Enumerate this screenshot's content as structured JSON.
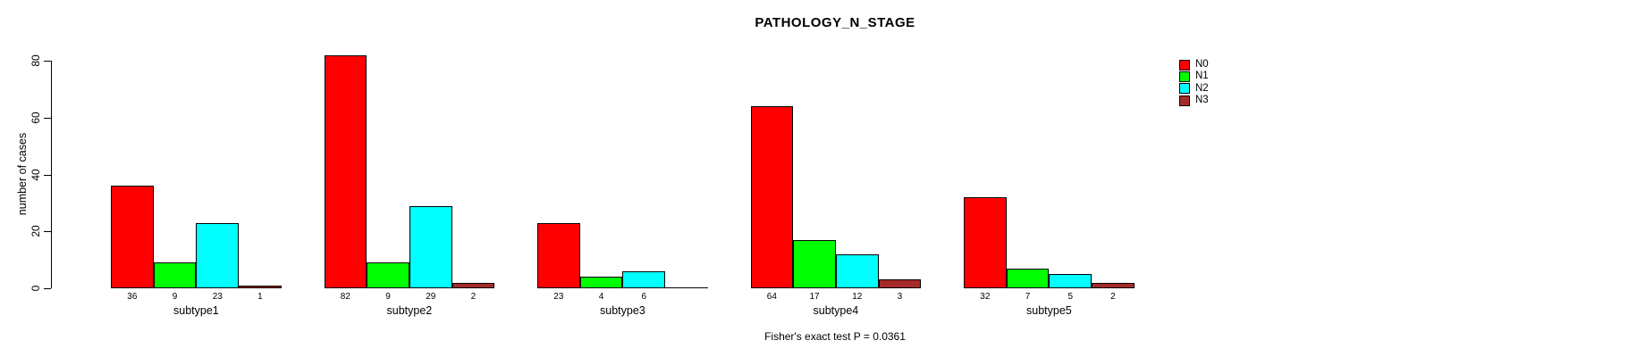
{
  "title": "PATHOLOGY_N_STAGE",
  "y_axis_label": "number of cases",
  "footer": "Fisher's exact test P = 0.0361",
  "legend": {
    "position": "top-right",
    "entries": [
      {
        "label": "N0",
        "color": "#FF0000"
      },
      {
        "label": "N1",
        "color": "#00FF00"
      },
      {
        "label": "N2",
        "color": "#00FFFF"
      },
      {
        "label": "N3",
        "color": "#A52A2A"
      }
    ]
  },
  "chart_data": {
    "type": "bar",
    "grouping": "grouped",
    "title": "PATHOLOGY_N_STAGE",
    "xlabel": "",
    "ylabel": "number of cases",
    "categories": [
      "subtype1",
      "subtype2",
      "subtype3",
      "subtype4",
      "subtype5"
    ],
    "series": [
      {
        "name": "N0",
        "color": "#FF0000",
        "values": [
          36,
          82,
          23,
          64,
          32
        ]
      },
      {
        "name": "N1",
        "color": "#00FF00",
        "values": [
          9,
          9,
          4,
          17,
          7
        ]
      },
      {
        "name": "N2",
        "color": "#00FFFF",
        "values": [
          23,
          29,
          6,
          12,
          5
        ]
      },
      {
        "name": "N3",
        "color": "#A52A2A",
        "values": [
          1,
          2,
          0,
          3,
          2
        ]
      }
    ],
    "bar_value_labels_shown": true,
    "zero_values_unlabeled": true,
    "yticks": [
      0,
      20,
      40,
      60,
      80
    ],
    "ylim": [
      0,
      85
    ],
    "grid": false,
    "legend_position": "top-right",
    "annotation": "Fisher's exact test P = 0.0361"
  }
}
